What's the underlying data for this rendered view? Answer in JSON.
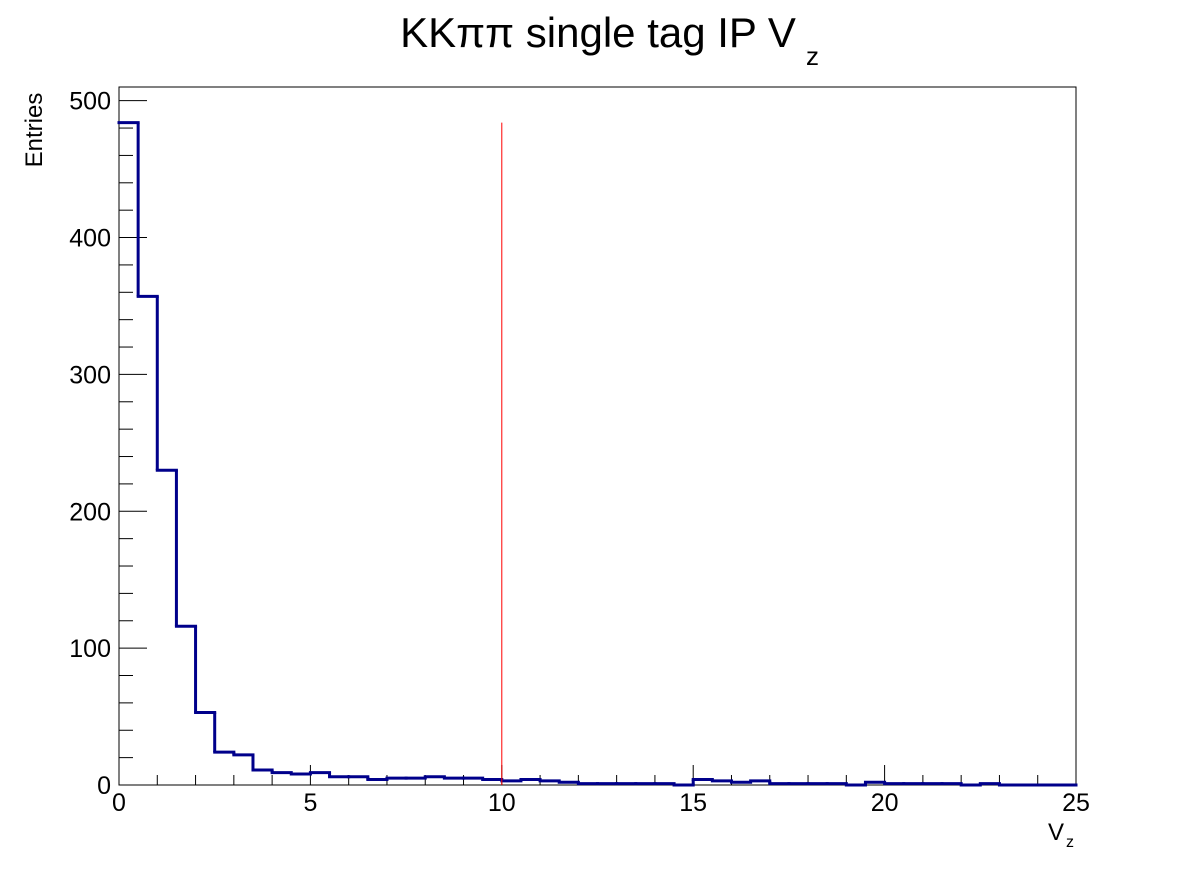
{
  "chart_data": {
    "type": "histogram",
    "title": "KKππ single tag IP V",
    "title_subscript": "z",
    "xlabel": "V",
    "xlabel_subscript": "z",
    "ylabel": "Entries",
    "xlim": [
      0,
      25
    ],
    "ylim": [
      0,
      510
    ],
    "x_ticks": [
      0,
      5,
      10,
      15,
      20,
      25
    ],
    "x_tick_labels": [
      "0",
      "5",
      "10",
      "15",
      "20",
      "25"
    ],
    "y_ticks": [
      0,
      100,
      200,
      300,
      400,
      500
    ],
    "y_tick_labels": [
      "0",
      "100",
      "200",
      "300",
      "400",
      "500"
    ],
    "bin_width": 0.5,
    "bin_start": 0,
    "values": [
      484,
      357,
      230,
      116,
      53,
      24,
      22,
      11,
      9,
      8,
      9,
      6,
      6,
      4,
      5,
      5,
      6,
      5,
      5,
      4,
      3,
      4,
      3,
      2,
      1,
      1,
      1,
      1,
      1,
      0,
      4,
      3,
      2,
      3,
      1,
      1,
      1,
      1,
      0,
      2,
      1,
      1,
      1,
      1,
      0,
      1,
      0,
      0,
      0,
      0
    ],
    "series_color": "#00008b",
    "cut_line": {
      "x": 10,
      "y_top": 484,
      "color": "#ff0000"
    },
    "grid": false,
    "legend": "none"
  }
}
